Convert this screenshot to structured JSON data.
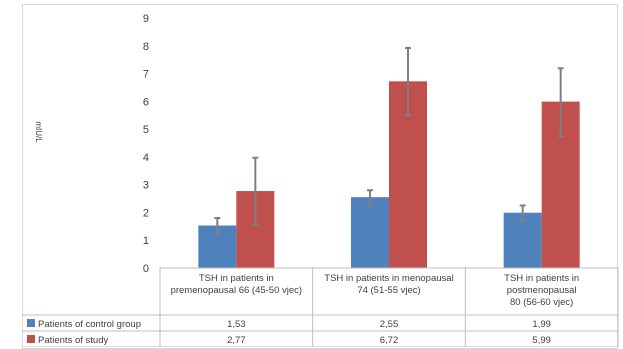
{
  "chart_data": {
    "type": "bar",
    "ylabel": "mIU/L",
    "ylim": [
      0,
      9
    ],
    "yticks": [
      0,
      1,
      2,
      3,
      4,
      5,
      6,
      7,
      8,
      9
    ],
    "grid": false,
    "legend": "data table below chart",
    "categories": [
      "TSH  in patients in premenopausal 66 (45-50 vjec)",
      "TSH in patients in menopausal 74 (51-55 vjec)",
      "TSH in patients in postmenopausal 80 (56-60 vjec)"
    ],
    "category_lines": [
      [
        "TSH  in patients in",
        "premenopausal 66 (45-50 vjec)"
      ],
      [
        "TSH in patients in menopausal",
        "74 (51-55 vjec)"
      ],
      [
        "TSH in patients in",
        "postmenopausal",
        "80 (56-60 vjec)"
      ]
    ],
    "series": [
      {
        "name": "Patients of control group",
        "color": "#4f81bd",
        "values": [
          1.53,
          2.55,
          1.99
        ],
        "value_labels": [
          "1,53",
          "2,55",
          "1,99"
        ],
        "error_low": [
          1.2,
          2.25,
          1.7
        ],
        "error_high": [
          1.8,
          2.8,
          2.25
        ]
      },
      {
        "name": "Patients of study",
        "color": "#c0504d",
        "values": [
          2.77,
          6.72,
          5.99
        ],
        "value_labels": [
          "2,77",
          "6,72",
          "5,99"
        ],
        "error_low": [
          1.55,
          5.5,
          4.75
        ],
        "error_high": [
          3.97,
          7.92,
          7.19
        ]
      }
    ]
  }
}
